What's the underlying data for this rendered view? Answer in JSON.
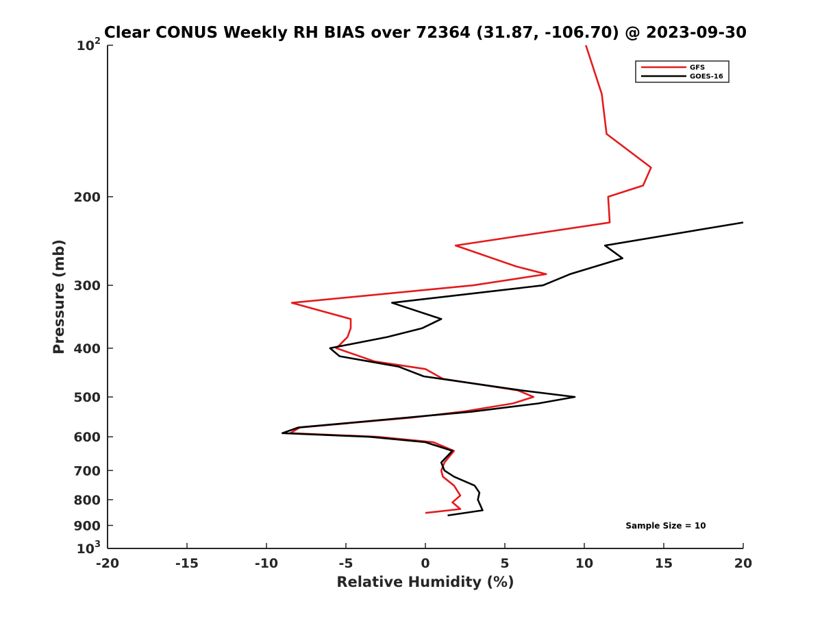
{
  "chart_data": {
    "type": "line",
    "title": "Clear CONUS Weekly RH BIAS over 72364 (31.87, -106.70) @ 2023-09-30",
    "xlabel": "Relative Humidity (%)",
    "ylabel": "Pressure (mb)",
    "xlim": [
      -20,
      20
    ],
    "ylim": [
      100,
      1000
    ],
    "y_scale": "log",
    "y_reversed": true,
    "x_ticks": [
      "-20",
      "-15",
      "-10",
      "-5",
      "0",
      "5",
      "10",
      "15",
      "20"
    ],
    "y_ticks": [
      {
        "value": 100,
        "base": "10",
        "exp": "2"
      },
      {
        "value": 200,
        "label": "200"
      },
      {
        "value": 300,
        "label": "300"
      },
      {
        "value": 400,
        "label": "400"
      },
      {
        "value": 500,
        "label": "500"
      },
      {
        "value": 600,
        "label": "600"
      },
      {
        "value": 700,
        "label": "700"
      },
      {
        "value": 800,
        "label": "800"
      },
      {
        "value": 900,
        "label": "900"
      },
      {
        "value": 1000,
        "base": "10",
        "exp": "3"
      }
    ],
    "grid": false,
    "legend_position": "top-right",
    "annotation": "Sample Size = 10",
    "series": [
      {
        "name": "GFS",
        "color": "#e41a1c",
        "points": [
          [
            10.1,
            100
          ],
          [
            11.1,
            125
          ],
          [
            11.4,
            150
          ],
          [
            14.2,
            175
          ],
          [
            13.7,
            190
          ],
          [
            11.5,
            200
          ],
          [
            11.6,
            225
          ],
          [
            1.9,
            250
          ],
          [
            5.7,
            275
          ],
          [
            7.6,
            285
          ],
          [
            3.0,
            300
          ],
          [
            -8.4,
            325
          ],
          [
            -4.7,
            350
          ],
          [
            -4.7,
            365
          ],
          [
            -4.9,
            380
          ],
          [
            -5.6,
            400
          ],
          [
            -3.2,
            425
          ],
          [
            0.0,
            440
          ],
          [
            1.1,
            460
          ],
          [
            5.8,
            485
          ],
          [
            6.8,
            500
          ],
          [
            5.5,
            515
          ],
          [
            2.3,
            535
          ],
          [
            -1.0,
            550
          ],
          [
            -7.9,
            575
          ],
          [
            -8.5,
            590
          ],
          [
            -3.0,
            600
          ],
          [
            0.5,
            615
          ],
          [
            1.8,
            640
          ],
          [
            1.2,
            675
          ],
          [
            1.0,
            700
          ],
          [
            1.1,
            720
          ],
          [
            1.8,
            750
          ],
          [
            2.2,
            785
          ],
          [
            1.7,
            810
          ],
          [
            2.2,
            835
          ],
          [
            0.0,
            850
          ]
        ]
      },
      {
        "name": "GOES-16",
        "color": "#000000",
        "points": [
          [
            20.0,
            225
          ],
          [
            11.3,
            250
          ],
          [
            12.4,
            265
          ],
          [
            9.1,
            285
          ],
          [
            7.4,
            300
          ],
          [
            -2.1,
            325
          ],
          [
            1.0,
            350
          ],
          [
            -0.2,
            365
          ],
          [
            -2.4,
            380
          ],
          [
            -6.0,
            400
          ],
          [
            -5.4,
            415
          ],
          [
            -1.7,
            435
          ],
          [
            -0.1,
            455
          ],
          [
            6.0,
            485
          ],
          [
            9.4,
            500
          ],
          [
            7.1,
            515
          ],
          [
            2.9,
            535
          ],
          [
            -8.0,
            575
          ],
          [
            -9.0,
            590
          ],
          [
            -3.5,
            600
          ],
          [
            0.0,
            615
          ],
          [
            1.7,
            640
          ],
          [
            1.0,
            675
          ],
          [
            1.2,
            700
          ],
          [
            1.8,
            720
          ],
          [
            3.1,
            750
          ],
          [
            3.4,
            775
          ],
          [
            3.3,
            800
          ],
          [
            3.6,
            840
          ],
          [
            1.4,
            860
          ]
        ]
      }
    ]
  }
}
